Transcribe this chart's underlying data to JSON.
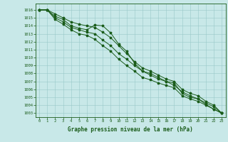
{
  "title": "Graphe pression niveau de la mer (hPa)",
  "xlabel_hours": [
    0,
    1,
    2,
    3,
    4,
    5,
    6,
    7,
    8,
    9,
    10,
    11,
    12,
    13,
    14,
    15,
    16,
    17,
    18,
    19,
    20,
    21,
    22,
    23
  ],
  "ylim": [
    1002.5,
    1016.8
  ],
  "yticks": [
    1003,
    1004,
    1005,
    1006,
    1007,
    1008,
    1009,
    1010,
    1011,
    1012,
    1013,
    1014,
    1015,
    1016
  ],
  "background_color": "#c8e8e8",
  "grid_color": "#98c8c8",
  "line_color": "#1a5c1a",
  "line1": [
    1016.0,
    1016.0,
    1015.2,
    1014.8,
    1014.0,
    1013.7,
    1013.5,
    1014.1,
    1014.0,
    1013.1,
    1011.7,
    1010.8,
    1009.3,
    1008.3,
    1008.0,
    1007.5,
    1007.0,
    1006.8,
    1005.5,
    1005.0,
    1004.8,
    1004.1,
    1003.5,
    1003.0
  ],
  "line2": [
    1016.0,
    1016.0,
    1015.5,
    1015.0,
    1014.5,
    1014.2,
    1014.0,
    1013.8,
    1013.2,
    1012.5,
    1011.5,
    1010.5,
    1009.5,
    1008.7,
    1008.3,
    1007.8,
    1007.3,
    1007.0,
    1006.0,
    1005.5,
    1005.2,
    1004.5,
    1004.0,
    1003.0
  ],
  "line3": [
    1016.0,
    1016.0,
    1014.8,
    1014.2,
    1013.5,
    1013.0,
    1012.8,
    1012.3,
    1011.5,
    1010.8,
    1009.8,
    1009.0,
    1008.3,
    1007.5,
    1007.2,
    1006.8,
    1006.5,
    1006.2,
    1005.2,
    1004.8,
    1004.5,
    1004.0,
    1003.5,
    1003.0
  ],
  "line4": [
    1016.0,
    1016.0,
    1015.0,
    1014.5,
    1013.8,
    1013.5,
    1013.2,
    1013.0,
    1012.2,
    1011.5,
    1010.5,
    1009.8,
    1009.0,
    1008.3,
    1007.8,
    1007.3,
    1007.0,
    1006.5,
    1005.7,
    1005.2,
    1004.8,
    1004.3,
    1003.8,
    1003.0
  ],
  "tick_fontsize": 4.0,
  "xlabel_fontsize": 5.5,
  "linewidth": 0.7,
  "markersize": 2.5
}
